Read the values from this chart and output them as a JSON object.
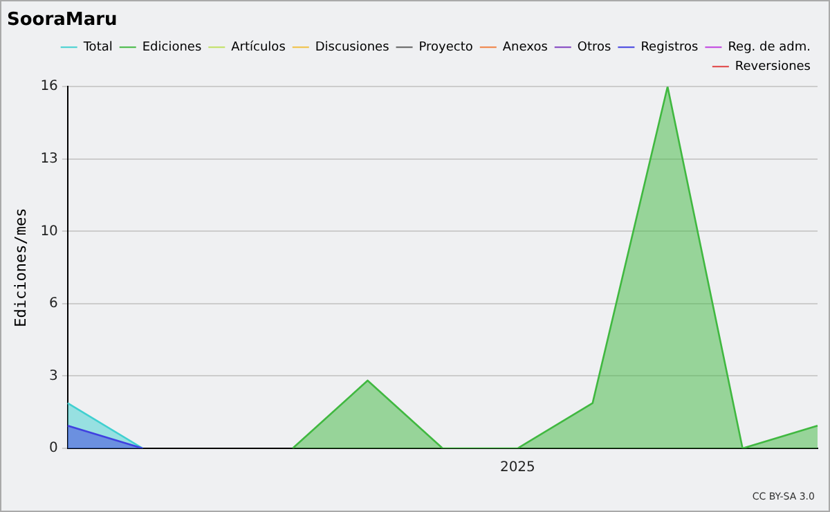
{
  "chart_data": {
    "type": "area",
    "title": "SooraMaru",
    "ylabel": "Ediciones/mes",
    "categories": [
      null,
      null,
      null,
      null,
      null,
      null,
      "2025",
      null,
      null,
      null,
      null
    ],
    "series": [
      {
        "name": "Total",
        "color": "#40d0d0",
        "values": [
          2,
          0,
          null,
          null,
          null,
          null,
          null,
          null,
          null,
          null,
          null
        ]
      },
      {
        "name": "Ediciones",
        "color": "#40b840",
        "values": [
          null,
          null,
          null,
          0,
          3,
          0,
          0,
          2,
          16,
          0,
          1
        ]
      },
      {
        "name": "Artículos",
        "color": "#c0e060",
        "values": [
          null,
          null,
          null,
          null,
          null,
          null,
          null,
          null,
          null,
          null,
          null
        ]
      },
      {
        "name": "Discusiones",
        "color": "#f0c040",
        "values": [
          null,
          null,
          null,
          null,
          null,
          null,
          null,
          null,
          null,
          null,
          null
        ]
      },
      {
        "name": "Proyecto",
        "color": "#606060",
        "values": [
          null,
          null,
          null,
          null,
          null,
          null,
          null,
          null,
          null,
          null,
          null
        ]
      },
      {
        "name": "Anexos",
        "color": "#f08040",
        "values": [
          null,
          null,
          null,
          null,
          null,
          null,
          null,
          null,
          null,
          null,
          null
        ]
      },
      {
        "name": "Otros",
        "color": "#8040c0",
        "values": [
          null,
          null,
          null,
          null,
          null,
          null,
          null,
          null,
          null,
          null,
          null
        ]
      },
      {
        "name": "Registros",
        "color": "#4040e0",
        "values": [
          1,
          0,
          null,
          null,
          null,
          null,
          null,
          null,
          null,
          null,
          null
        ]
      },
      {
        "name": "Reg. de adm.",
        "color": "#c040e0",
        "values": [
          null,
          null,
          null,
          null,
          null,
          null,
          null,
          null,
          null,
          null,
          null
        ]
      },
      {
        "name": "Reversiones",
        "color": "#e04040",
        "values": [
          null,
          null,
          null,
          null,
          null,
          null,
          null,
          null,
          null,
          null,
          null
        ]
      }
    ],
    "ylim": [
      0,
      16
    ],
    "yticks": [
      0,
      {
        "value": 3.2,
        "label": "3"
      },
      {
        "value": 6.4,
        "label": "6"
      },
      {
        "value": 9.6,
        "label": "10"
      },
      {
        "value": 12.8,
        "label": "13"
      },
      16
    ],
    "grid": "y",
    "legend": "top right",
    "marker": "none",
    "line_style": "solid",
    "annotations": [
      "CC BY-SA 3.0"
    ]
  }
}
